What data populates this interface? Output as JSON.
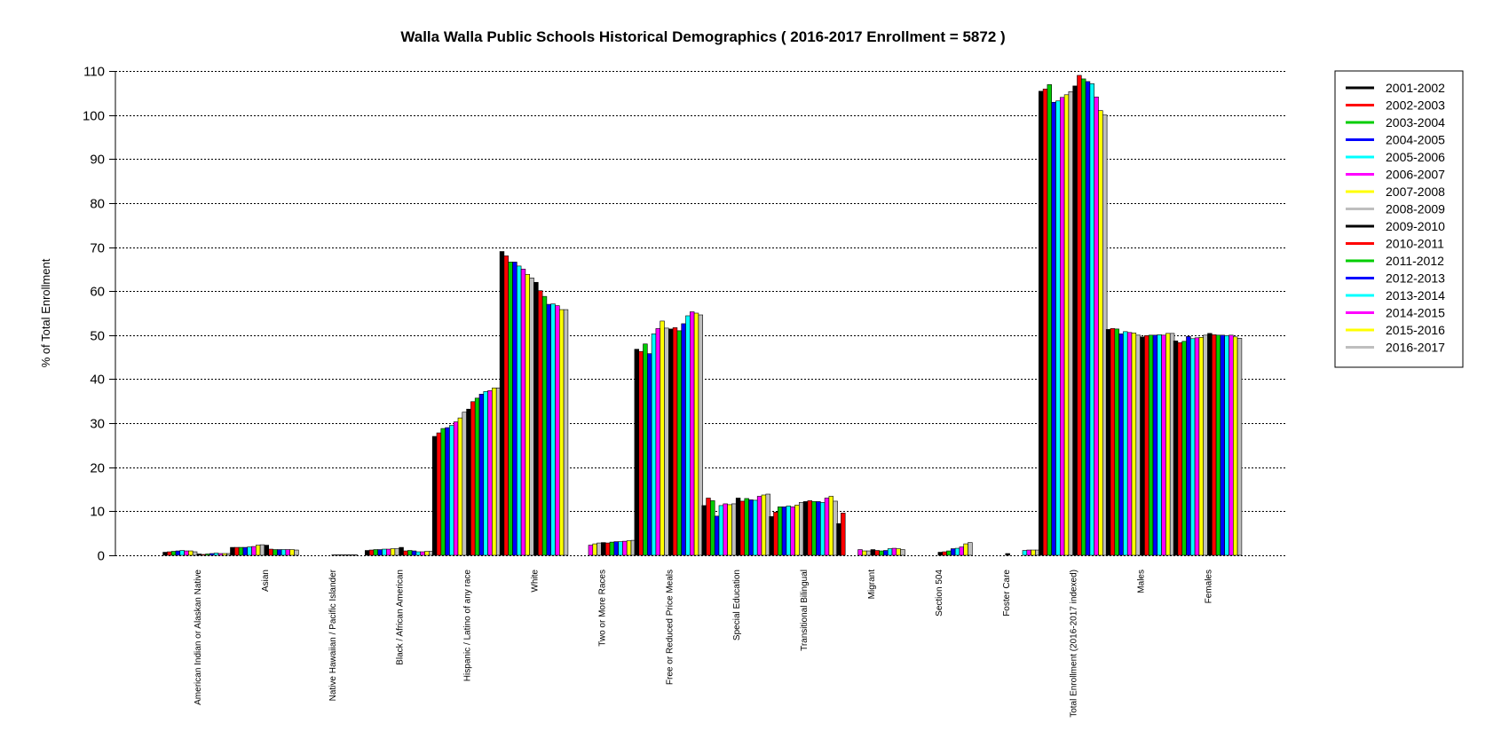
{
  "chart_data": {
    "type": "bar",
    "title": "Walla Walla Public Schools Historical Demographics  ( 2016-2017 Enrollment =  5872 )",
    "xlabel": "",
    "ylabel": "% of Total Enrollment",
    "ylim": [
      0,
      110
    ],
    "yticks": [
      0,
      10,
      20,
      30,
      40,
      50,
      60,
      70,
      80,
      90,
      100,
      110
    ],
    "grid": true,
    "legend_position": "right",
    "categories": [
      "American Indian or Alaskan Native",
      "Asian",
      "Native Hawaiian / Pacific Islander",
      "Black / African American",
      "Hispanic / Latino of any race",
      "White",
      "Two or More Races",
      "Free or Reduced Price Meals",
      "Special Education",
      "Transitional Bilingual",
      "Migrant",
      "Section 504",
      "Foster Care",
      "Total Enrollment (2016-2017 indexed)",
      "Males",
      "Females"
    ],
    "series": [
      {
        "name": "2001-2002",
        "color": "#000000",
        "values": [
          0.7,
          1.8,
          0,
          1.1,
          27.0,
          69.0,
          0,
          46.8,
          11.3,
          8.8,
          7.2,
          0,
          0,
          105.4,
          51.3,
          48.7
        ]
      },
      {
        "name": "2002-2003",
        "color": "#ff0000",
        "values": [
          0.8,
          1.8,
          0,
          1.2,
          27.8,
          68.0,
          0,
          46.3,
          13.0,
          9.8,
          9.6,
          0,
          0,
          105.9,
          51.5,
          48.3
        ]
      },
      {
        "name": "2003-2004",
        "color": "#00cd00",
        "values": [
          0.9,
          1.8,
          0,
          1.3,
          28.8,
          66.6,
          0,
          48.0,
          12.4,
          11.0,
          0,
          0,
          0,
          106.9,
          51.4,
          48.6
        ]
      },
      {
        "name": "2004-2005",
        "color": "#0000ff",
        "values": [
          1.0,
          1.8,
          0,
          1.3,
          29.0,
          66.6,
          0,
          45.8,
          8.9,
          11.0,
          0,
          0,
          0,
          102.9,
          50.3,
          49.7
        ]
      },
      {
        "name": "2005-2006",
        "color": "#00ffff",
        "values": [
          1.1,
          1.9,
          0,
          1.4,
          29.5,
          65.7,
          0,
          50.3,
          11.3,
          11.2,
          0,
          0,
          0,
          103.2,
          50.8,
          49.2
        ]
      },
      {
        "name": "2006-2007",
        "color": "#ff00ff",
        "values": [
          1.0,
          2.0,
          0,
          1.4,
          30.3,
          65.0,
          2.3,
          51.5,
          11.7,
          11.0,
          1.3,
          0,
          0,
          104.0,
          50.6,
          49.4
        ]
      },
      {
        "name": "2007-2008",
        "color": "#ffff00",
        "values": [
          1.0,
          2.3,
          0,
          1.5,
          31.2,
          63.8,
          2.6,
          53.2,
          11.5,
          11.4,
          1.0,
          0,
          0,
          104.6,
          50.5,
          49.5
        ]
      },
      {
        "name": "2008-2009",
        "color": "#bebebe",
        "values": [
          0.8,
          2.4,
          0,
          1.5,
          32.5,
          63.0,
          2.8,
          51.6,
          11.7,
          12.0,
          1.0,
          0,
          0,
          105.3,
          50.0,
          50.0
        ]
      },
      {
        "name": "2009-2010",
        "color": "#000000",
        "values": [
          0.3,
          2.3,
          0.1,
          1.8,
          33.2,
          62.0,
          2.9,
          51.4,
          13.0,
          12.2,
          1.3,
          0.7,
          0.4,
          106.6,
          49.6,
          50.4
        ]
      },
      {
        "name": "2010-2011",
        "color": "#ff0000",
        "values": [
          0.2,
          1.4,
          0.1,
          1.0,
          34.9,
          60.1,
          2.8,
          51.7,
          12.3,
          12.4,
          1.1,
          0.8,
          0,
          109.0,
          49.9,
          50.1
        ]
      },
      {
        "name": "2011-2012",
        "color": "#00cd00",
        "values": [
          0.3,
          1.3,
          0.1,
          1.1,
          35.7,
          58.8,
          3.0,
          51.0,
          12.9,
          12.2,
          1.0,
          1.0,
          0,
          108.2,
          50.0,
          50.0
        ]
      },
      {
        "name": "2012-2013",
        "color": "#0000ff",
        "values": [
          0.4,
          1.3,
          0.1,
          1.0,
          36.6,
          57.0,
          3.1,
          52.6,
          12.6,
          12.2,
          1.1,
          1.5,
          0,
          107.6,
          50.0,
          50.0
        ]
      },
      {
        "name": "2013-2014",
        "color": "#00ffff",
        "values": [
          0.5,
          1.3,
          0.1,
          0.8,
          37.2,
          57.1,
          3.1,
          54.4,
          12.5,
          12.0,
          1.5,
          1.6,
          1.1,
          107.1,
          50.1,
          49.9
        ]
      },
      {
        "name": "2014-2015",
        "color": "#ff00ff",
        "values": [
          0.4,
          1.3,
          0.1,
          0.8,
          37.4,
          56.7,
          3.2,
          55.3,
          13.4,
          13.0,
          1.6,
          1.9,
          1.2,
          104.1,
          50.0,
          50.0
        ]
      },
      {
        "name": "2015-2016",
        "color": "#ffff00",
        "values": [
          0.4,
          1.3,
          0,
          0.9,
          38.0,
          55.8,
          3.3,
          55.0,
          13.7,
          13.4,
          1.5,
          2.6,
          1.2,
          101.0,
          50.4,
          49.6
        ]
      },
      {
        "name": "2016-2017",
        "color": "#bebebe",
        "values": [
          0.4,
          1.2,
          0,
          0.9,
          38.0,
          55.8,
          3.4,
          54.6,
          13.9,
          12.3,
          1.3,
          2.9,
          1.2,
          100.0,
          50.4,
          49.3
        ]
      }
    ]
  }
}
